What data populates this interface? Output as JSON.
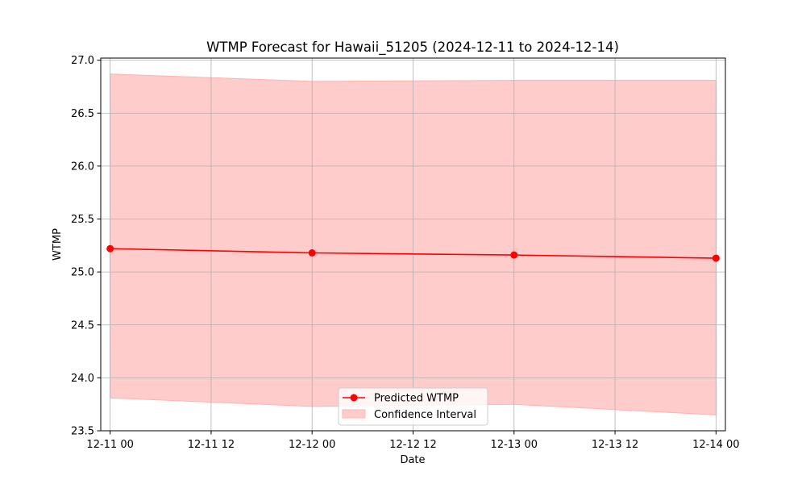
{
  "chart_data": {
    "type": "line",
    "title": "WTMP Forecast for Hawaii_51205 (2024-12-11 to 2024-12-14)",
    "xlabel": "Date",
    "ylabel": "WTMP",
    "x": [
      "2024-12-11 00:00",
      "2024-12-12 00:00",
      "2024-12-13 00:00",
      "2024-12-14 00:00"
    ],
    "xlim": [
      "2024-12-10 22:53",
      "2024-12-14 01:07"
    ],
    "ylim": [
      23.5,
      27.02
    ],
    "x_ticks": [
      {
        "at": "2024-12-11 00:00",
        "label": "12-11 00"
      },
      {
        "at": "2024-12-11 12:00",
        "label": "12-11 12"
      },
      {
        "at": "2024-12-12 00:00",
        "label": "12-12 00"
      },
      {
        "at": "2024-12-12 12:00",
        "label": "12-12 12"
      },
      {
        "at": "2024-12-13 00:00",
        "label": "12-13 00"
      },
      {
        "at": "2024-12-13 12:00",
        "label": "12-13 12"
      },
      {
        "at": "2024-12-14 00:00",
        "label": "12-14 00"
      }
    ],
    "y_ticks": [
      {
        "value": 23.5,
        "label": "23.5"
      },
      {
        "value": 24.0,
        "label": "24.0"
      },
      {
        "value": 24.5,
        "label": "24.5"
      },
      {
        "value": 25.0,
        "label": "25.0"
      },
      {
        "value": 25.5,
        "label": "25.5"
      },
      {
        "value": 26.0,
        "label": "26.0"
      },
      {
        "value": 26.5,
        "label": "26.5"
      },
      {
        "value": 27.0,
        "label": "27.0"
      }
    ],
    "series": [
      {
        "name": "Predicted WTMP",
        "values": [
          25.22,
          25.18,
          25.16,
          25.13
        ],
        "color": "#ff0000",
        "marker": "circle"
      }
    ],
    "band": {
      "name": "Confidence Interval",
      "lower": [
        23.81,
        23.73,
        23.75,
        23.65
      ],
      "upper": [
        26.87,
        26.8,
        26.81,
        26.81
      ],
      "color": "#ffcccc",
      "edge_color": "#ffb3b3"
    },
    "grid": true,
    "legend_position": "bottom-center"
  }
}
